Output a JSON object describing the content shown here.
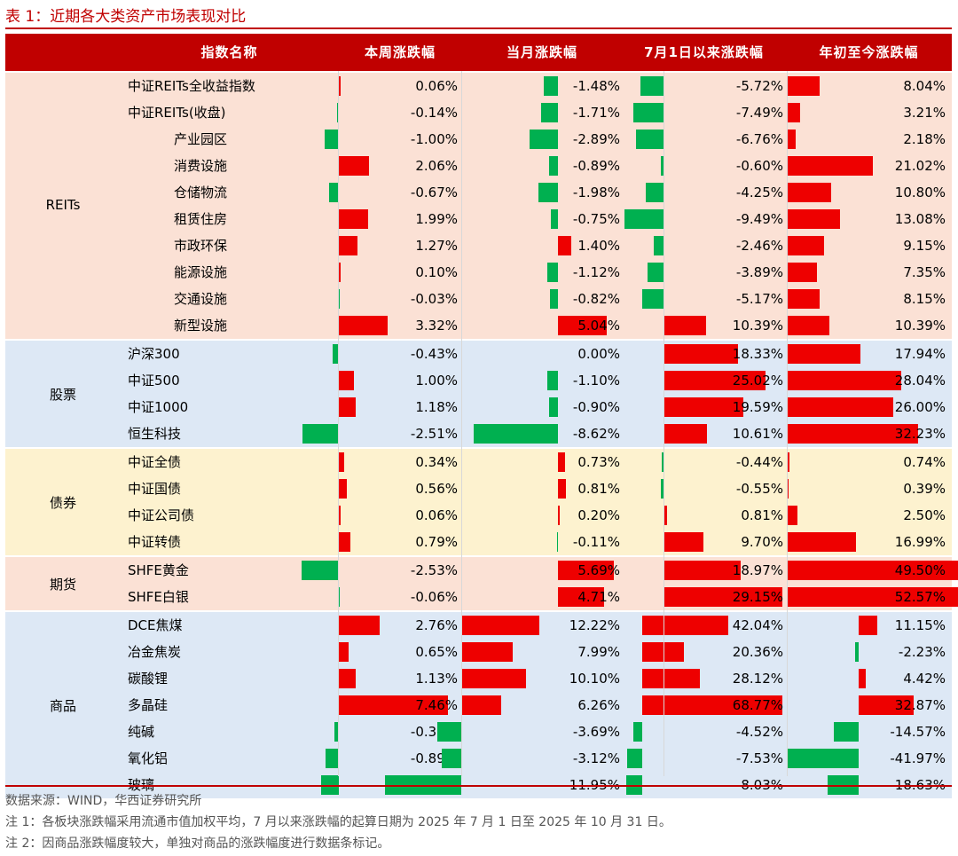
{
  "title": "表 1：近期各大类资产市场表现对比",
  "columns": [
    "指数名称",
    "本周涨跌幅",
    "当月涨跌幅",
    "7月1日以来涨跌幅",
    "年初至今涨跌幅"
  ],
  "colors": {
    "up": "#ee0000",
    "down": "#00b050",
    "header": "#c00000",
    "reits_bg": "#fbe1d5",
    "stock_bg": "#dde8f5",
    "bond_bg": "#fdf2cf",
    "futures_bg": "#fbe1d5",
    "commodity_bg": "#dde8f5"
  },
  "groups": [
    {
      "label": "REITs",
      "key": "reits",
      "rows": [
        {
          "name": "中证REITs全收益指数",
          "week": "0.06%",
          "month": "-1.48%",
          "since_jul": "-5.72%",
          "ytd": "8.04%"
        },
        {
          "name": "中证REITs(收盘)",
          "week": "-0.14%",
          "month": "-1.71%",
          "since_jul": "-7.49%",
          "ytd": "3.21%"
        },
        {
          "name": "产业园区",
          "week": "-1.00%",
          "month": "-2.89%",
          "since_jul": "-6.76%",
          "ytd": "2.18%"
        },
        {
          "name": "消费设施",
          "week": "2.06%",
          "month": "-0.89%",
          "since_jul": "-0.60%",
          "ytd": "21.02%"
        },
        {
          "name": "仓储物流",
          "week": "-0.67%",
          "month": "-1.98%",
          "since_jul": "-4.25%",
          "ytd": "10.80%"
        },
        {
          "name": "租赁住房",
          "week": "1.99%",
          "month": "-0.75%",
          "since_jul": "-9.49%",
          "ytd": "13.08%"
        },
        {
          "name": "市政环保",
          "week": "1.27%",
          "month": "1.40%",
          "since_jul": "-2.46%",
          "ytd": "9.15%"
        },
        {
          "name": "能源设施",
          "week": "0.10%",
          "month": "-1.12%",
          "since_jul": "-3.89%",
          "ytd": "7.35%"
        },
        {
          "name": "交通设施",
          "week": "-0.03%",
          "month": "-0.82%",
          "since_jul": "-5.17%",
          "ytd": "8.15%"
        },
        {
          "name": "新型设施",
          "week": "3.32%",
          "month": "5.04%",
          "since_jul": "10.39%",
          "ytd": "10.39%"
        }
      ]
    },
    {
      "label": "股票",
      "key": "stock",
      "rows": [
        {
          "name": "沪深300",
          "week": "-0.43%",
          "month": "0.00%",
          "since_jul": "18.33%",
          "ytd": "17.94%"
        },
        {
          "name": "中证500",
          "week": "1.00%",
          "month": "-1.10%",
          "since_jul": "25.02%",
          "ytd": "28.04%"
        },
        {
          "name": "中证1000",
          "week": "1.18%",
          "month": "-0.90%",
          "since_jul": "19.59%",
          "ytd": "26.00%"
        },
        {
          "name": "恒生科技",
          "week": "-2.51%",
          "month": "-8.62%",
          "since_jul": "10.61%",
          "ytd": "32.23%"
        }
      ]
    },
    {
      "label": "债券",
      "key": "bond",
      "rows": [
        {
          "name": "中证全债",
          "week": "0.34%",
          "month": "0.73%",
          "since_jul": "-0.44%",
          "ytd": "0.74%"
        },
        {
          "name": "中证国债",
          "week": "0.56%",
          "month": "0.81%",
          "since_jul": "-0.55%",
          "ytd": "0.39%"
        },
        {
          "name": "中证公司债",
          "week": "0.06%",
          "month": "0.20%",
          "since_jul": "0.81%",
          "ytd": "2.50%"
        },
        {
          "name": "中证转债",
          "week": "0.79%",
          "month": "-0.11%",
          "since_jul": "9.70%",
          "ytd": "16.99%"
        }
      ]
    },
    {
      "label": "期货",
      "key": "futures",
      "rows": [
        {
          "name": "SHFE黄金",
          "week": "-2.53%",
          "month": "5.69%",
          "since_jul": "18.97%",
          "ytd": "49.50%"
        },
        {
          "name": "SHFE白银",
          "week": "-0.06%",
          "month": "4.71%",
          "since_jul": "29.15%",
          "ytd": "52.57%"
        }
      ]
    },
    {
      "label": "商品",
      "key": "commodity",
      "rows": [
        {
          "name": "DCE焦煤",
          "week": "2.76%",
          "month": "12.22%",
          "since_jul": "42.04%",
          "ytd": "11.15%"
        },
        {
          "name": "冶金焦炭",
          "week": "0.65%",
          "month": "7.99%",
          "since_jul": "20.36%",
          "ytd": "-2.23%"
        },
        {
          "name": "碳酸锂",
          "week": "1.13%",
          "month": "10.10%",
          "since_jul": "28.12%",
          "ytd": "4.42%"
        },
        {
          "name": "多晶硅",
          "week": "7.46%",
          "month": "6.26%",
          "since_jul": "68.77%",
          "ytd": "32.87%"
        },
        {
          "name": "纯碱",
          "week": "-0.33%",
          "month": "-3.69%",
          "since_jul": "-4.52%",
          "ytd": "-14.57%"
        },
        {
          "name": "氧化铝",
          "week": "-0.89%",
          "month": "-3.12%",
          "since_jul": "-7.53%",
          "ytd": "-41.97%"
        },
        {
          "name": "玻璃",
          "week": "-1.19%",
          "month": "-11.95%",
          "since_jul": "-8.03%",
          "ytd": "-18.63%"
        }
      ]
    }
  ],
  "notes": {
    "source": "数据来源：WIND，华西证券研究所",
    "note1": "注 1：各板块涨跌幅采用流通市值加权平均，7 月以来涨跌幅的起算日期为 2025 年 7 月 1 日至 2025 年 10 月 31 日。",
    "note2": "注 2：因商品涨跌幅度较大，单独对商品的涨跌幅度进行数据条标记。"
  }
}
